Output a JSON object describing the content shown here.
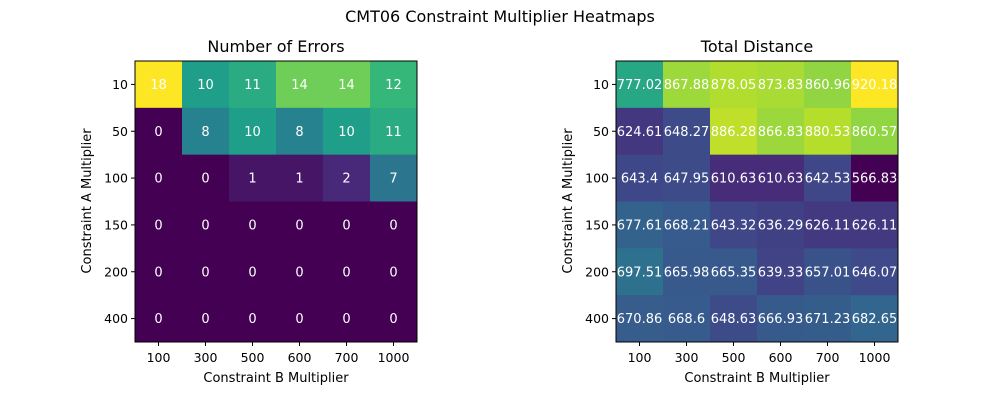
{
  "figure": {
    "title": "CMT06 Constraint Multiplier Heatmaps"
  },
  "chart_data": [
    {
      "type": "heatmap",
      "title": "Number of Errors",
      "xlabel": "Constraint B Multiplier",
      "ylabel": "Constraint A Multiplier",
      "x_categories": [
        "100",
        "300",
        "500",
        "600",
        "700",
        "1000"
      ],
      "y_categories": [
        "10",
        "50",
        "100",
        "150",
        "200",
        "400"
      ],
      "colormap": "viridis",
      "values": [
        [
          18,
          10,
          11,
          14,
          14,
          12
        ],
        [
          0,
          8,
          10,
          8,
          10,
          11
        ],
        [
          0,
          0,
          1,
          1,
          2,
          7
        ],
        [
          0,
          0,
          0,
          0,
          0,
          0
        ],
        [
          0,
          0,
          0,
          0,
          0,
          0
        ],
        [
          0,
          0,
          0,
          0,
          0,
          0
        ]
      ],
      "labels": [
        [
          "18",
          "10",
          "11",
          "14",
          "14",
          "12"
        ],
        [
          "0",
          "8",
          "10",
          "8",
          "10",
          "11"
        ],
        [
          "0",
          "0",
          "1",
          "1",
          "2",
          "7"
        ],
        [
          "0",
          "0",
          "0",
          "0",
          "0",
          "0"
        ],
        [
          "0",
          "0",
          "0",
          "0",
          "0",
          "0"
        ],
        [
          "0",
          "0",
          "0",
          "0",
          "0",
          "0"
        ]
      ]
    },
    {
      "type": "heatmap",
      "title": "Total Distance",
      "xlabel": "Constraint B Multiplier",
      "ylabel": "Constraint A Multiplier",
      "x_categories": [
        "100",
        "300",
        "500",
        "600",
        "700",
        "1000"
      ],
      "y_categories": [
        "10",
        "50",
        "100",
        "150",
        "200",
        "400"
      ],
      "colormap": "viridis",
      "values": [
        [
          777.02,
          867.88,
          878.05,
          873.83,
          860.96,
          920.18
        ],
        [
          624.61,
          648.27,
          886.28,
          866.83,
          880.53,
          860.57
        ],
        [
          643.4,
          647.95,
          610.63,
          610.63,
          642.53,
          566.83
        ],
        [
          677.61,
          668.21,
          643.32,
          636.29,
          626.11,
          626.11
        ],
        [
          697.51,
          665.98,
          665.35,
          639.33,
          657.01,
          646.07
        ],
        [
          670.86,
          668.6,
          648.63,
          666.93,
          671.23,
          682.65
        ]
      ],
      "labels": [
        [
          "777.02",
          "867.88",
          "878.05",
          "873.83",
          "860.96",
          "920.18"
        ],
        [
          "624.61",
          "648.27",
          "886.28",
          "866.83",
          "880.53",
          "860.57"
        ],
        [
          "643.4",
          "647.95",
          "610.63",
          "610.63",
          "642.53",
          "566.83"
        ],
        [
          "677.61",
          "668.21",
          "643.32",
          "636.29",
          "626.11",
          "626.11"
        ],
        [
          "697.51",
          "665.98",
          "665.35",
          "639.33",
          "657.01",
          "646.07"
        ],
        [
          "670.86",
          "668.6",
          "648.63",
          "666.93",
          "671.23",
          "682.65"
        ]
      ]
    }
  ]
}
